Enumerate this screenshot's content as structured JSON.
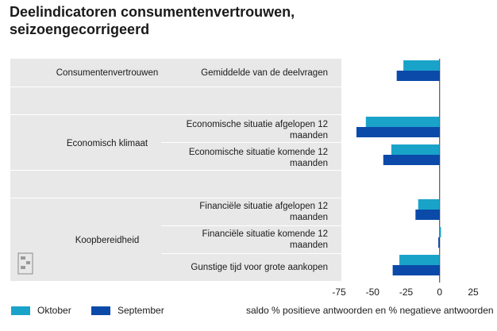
{
  "title_line1": "Deelindicatoren consumentenvertrouwen,",
  "title_line2": "seizoengecorrigeerd",
  "groups": {
    "consumentenvertrouwen": "Consumentenvertrouwen",
    "economisch_klimaat": "Economisch klimaat",
    "koopbereidheid": "Koopbereidheid"
  },
  "rows": {
    "r1": "Gemiddelde van de deelvragen",
    "r2a": "Economische situatie afgelopen 12",
    "r2b": "maanden",
    "r3a": "Economische situatie komende 12",
    "r3b": "maanden",
    "r4": "Financiële situatie afgelopen 12 maanden",
    "r5": "Financiële situatie komende 12 maanden",
    "r6": "Gunstige tijd voor grote aankopen"
  },
  "legend": {
    "oktober": "Oktober",
    "september": "September",
    "oktober_color": "#1aa3c9",
    "september_color": "#0b4aa8"
  },
  "x_axis_label": "saldo % positieve antwoorden en % negatieve antwoorden",
  "chart_data": {
    "type": "bar",
    "orientation": "horizontal",
    "categories": [
      "Gemiddelde van de deelvragen",
      "Economische situatie afgelopen 12 maanden",
      "Economische situatie komende 12 maanden",
      "Financiële situatie afgelopen 12 maanden",
      "Financiële situatie komende 12 maanden",
      "Gunstige tijd voor grote aankopen"
    ],
    "series": [
      {
        "name": "Oktober",
        "color": "#1aa3c9",
        "values": [
          -27,
          -55,
          -36,
          -16,
          1,
          -30
        ]
      },
      {
        "name": "September",
        "color": "#0b4aa8",
        "values": [
          -32,
          -62,
          -42,
          -18,
          -1,
          -35
        ]
      }
    ],
    "xlim": [
      -75,
      25
    ],
    "xticks": [
      -75,
      -50,
      -25,
      0,
      25
    ],
    "xlabel": "saldo % positieve antwoorden en % negatieve antwoorden"
  }
}
